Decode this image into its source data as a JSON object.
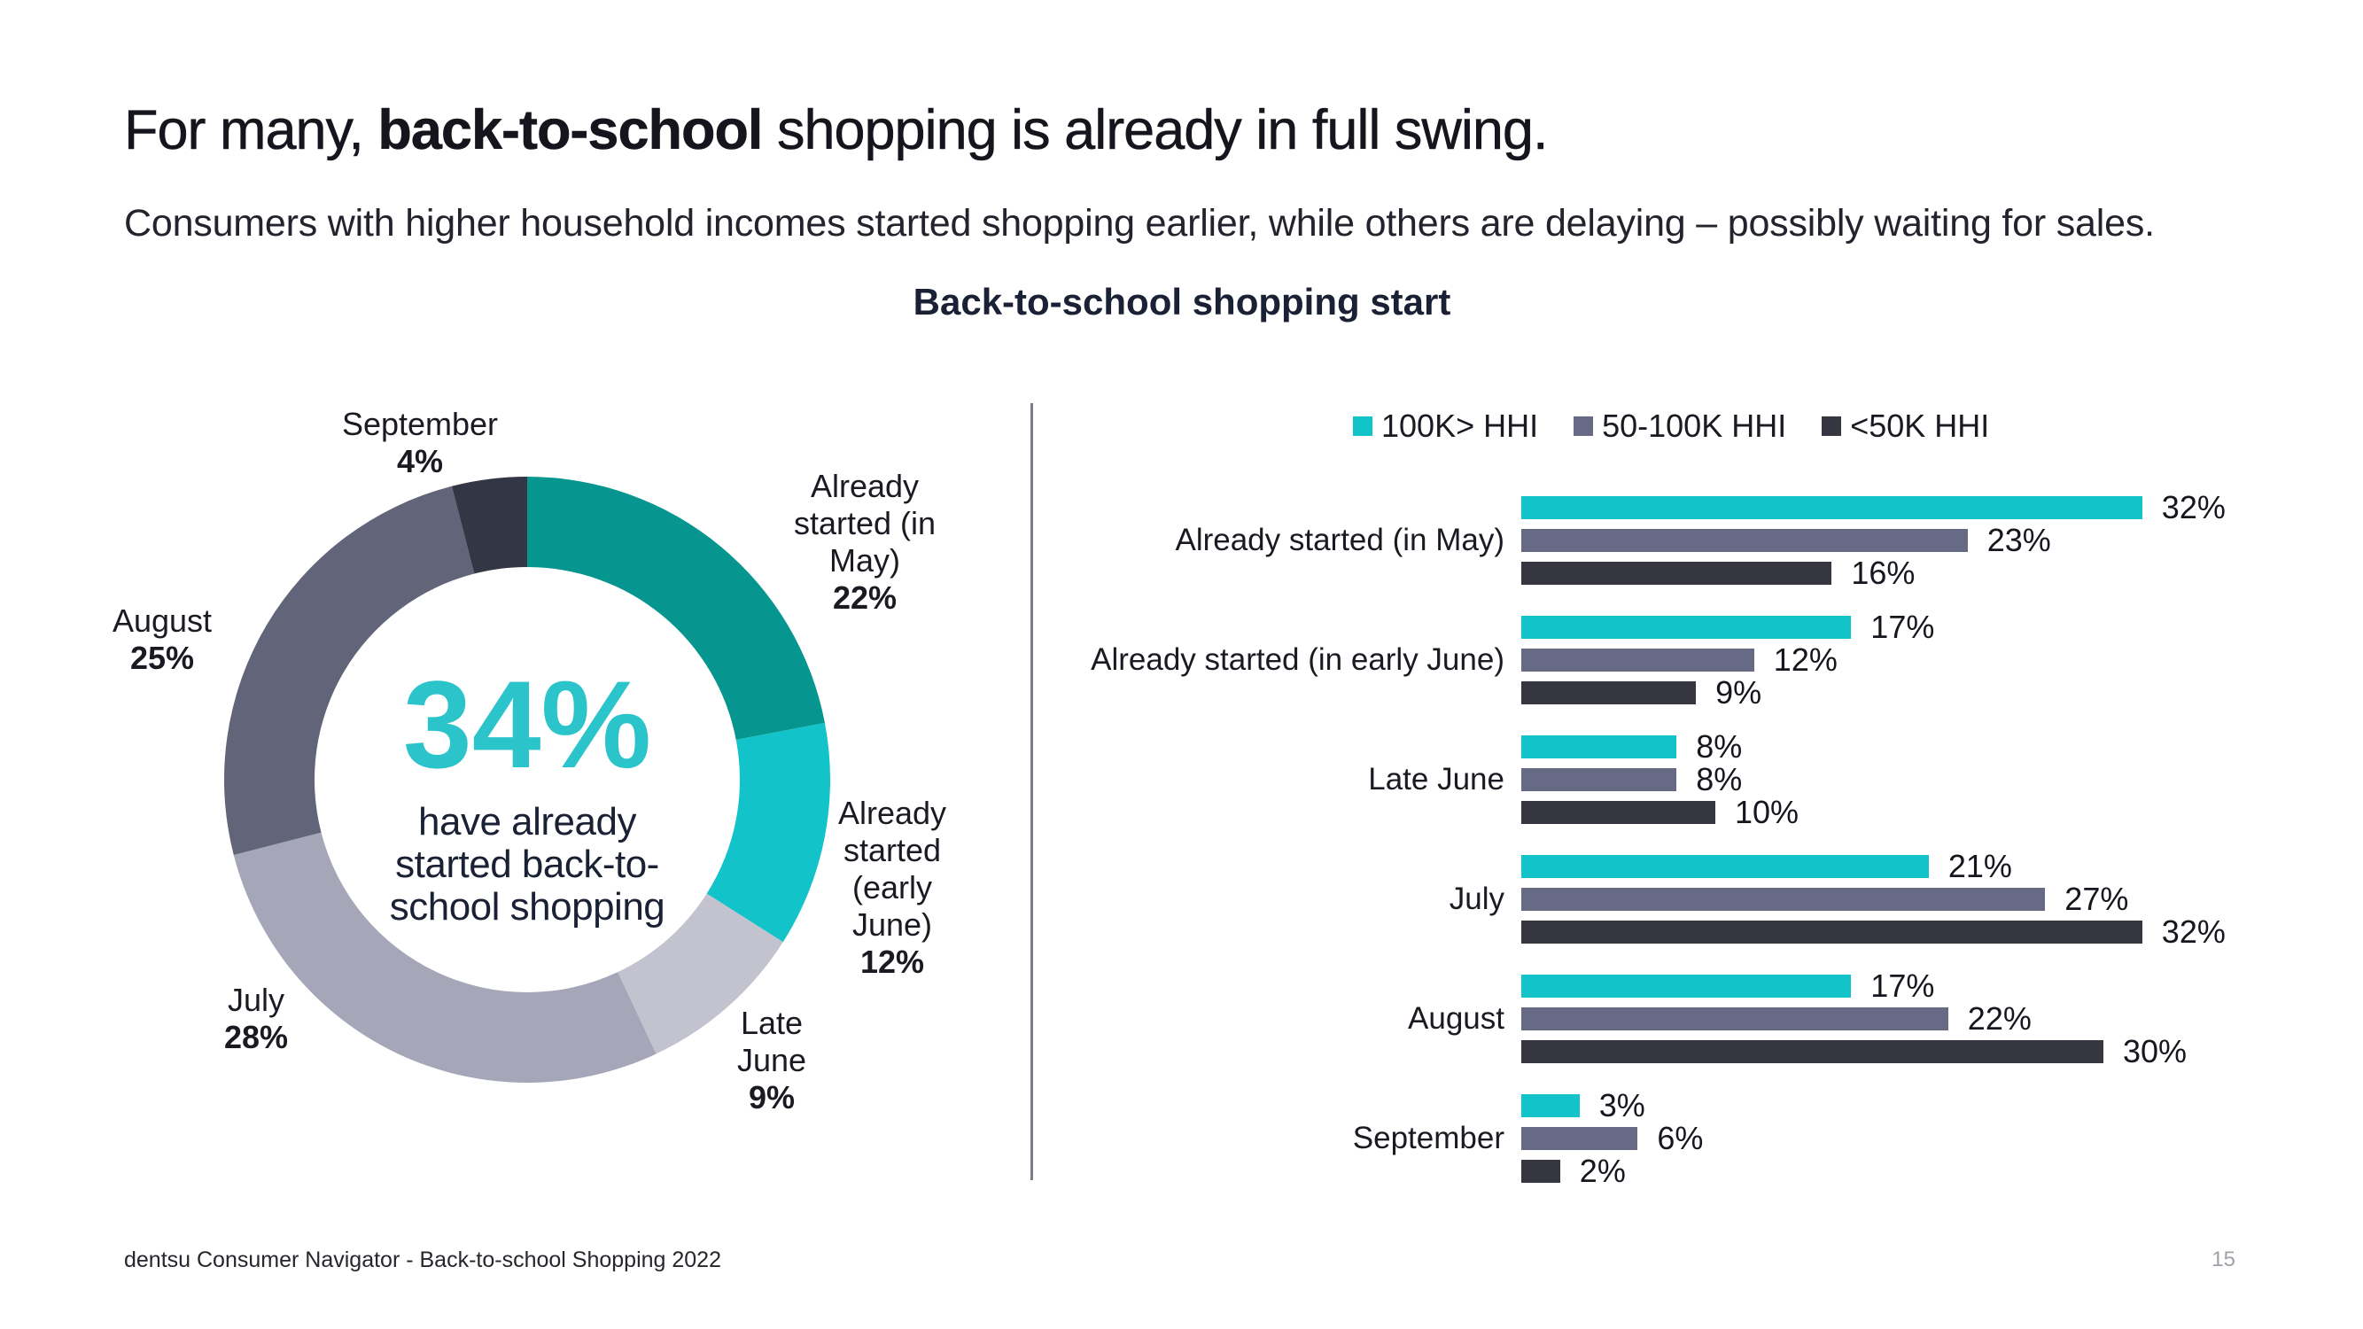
{
  "slide": {
    "title": {
      "prefix": "For many, ",
      "bold": "back-to-school",
      "suffix": " shopping is already in full swing."
    },
    "subtitle": "Consumers with higher household incomes started shopping earlier, while others are delaying – possibly waiting for sales.",
    "chart_title": "Back-to-school shopping start",
    "footer_source": "dentsu Consumer Navigator - Back-to-school Shopping 2022",
    "page_number": "15"
  },
  "colors": {
    "teal_dark": "#07968F",
    "cyan": "#12C3C9",
    "slate": "#666A84",
    "charcoal": "#35363F",
    "light_gray": "#C2C3CF",
    "mid_gray": "#A5A7B9",
    "august_gray": "#626579",
    "september_dark": "#333645",
    "headline_text": "#15151D",
    "navy_text": "#1B2135",
    "accent_value": "#2BC4CA",
    "divider": "#7B7D8C",
    "page_number": "#9FA0A8"
  },
  "chart_data": [
    {
      "type": "pie",
      "subtype": "donut",
      "title": "Back-to-school shopping start",
      "center": {
        "value": "34%",
        "label": "have already started back-to-school shopping",
        "label_lines": [
          "have already",
          "started back-to-",
          "school shopping"
        ]
      },
      "slices": [
        {
          "label": "Already started (in May)",
          "label_lines": [
            "Already",
            "started (in",
            "May)"
          ],
          "value": 22,
          "color": "#07968F"
        },
        {
          "label": "Already started (early June)",
          "label_lines": [
            "Already",
            "started",
            "(early",
            "June)"
          ],
          "value": 12,
          "color": "#12C3C9"
        },
        {
          "label": "Late June",
          "label_lines": [
            "Late",
            "June"
          ],
          "value": 9,
          "color": "#C2C3CF"
        },
        {
          "label": "July",
          "label_lines": [
            "July"
          ],
          "value": 28,
          "color": "#A5A7B9"
        },
        {
          "label": "August",
          "label_lines": [
            "August"
          ],
          "value": 25,
          "color": "#626579"
        },
        {
          "label": "September",
          "label_lines": [
            "September"
          ],
          "value": 4,
          "color": "#333645"
        }
      ]
    },
    {
      "type": "bar",
      "orientation": "horizontal",
      "legend_position": "top",
      "categories": [
        "Already started (in May)",
        "Already started (in early June)",
        "Late June",
        "July",
        "August",
        "September"
      ],
      "series": [
        {
          "name": "100K> HHI",
          "color": "#12C3C9",
          "values": [
            32,
            17,
            8,
            21,
            17,
            3
          ]
        },
        {
          "name": "50-100K HHI",
          "color": "#666A84",
          "values": [
            23,
            12,
            8,
            27,
            22,
            6
          ]
        },
        {
          "name": "<50K HHI",
          "color": "#35363F",
          "values": [
            16,
            9,
            10,
            32,
            30,
            2
          ]
        }
      ],
      "value_suffix": "%",
      "xmax": 32
    }
  ]
}
